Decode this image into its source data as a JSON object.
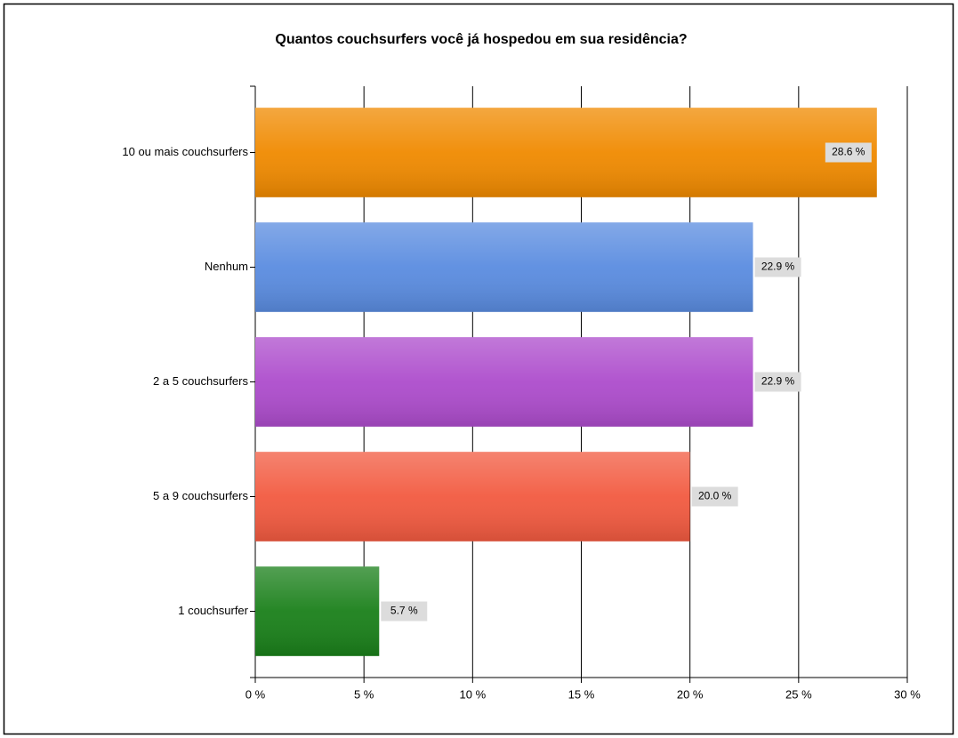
{
  "chart_data": {
    "type": "bar",
    "orientation": "horizontal",
    "title": "Quantos couchsurfers você já hospedou em sua residência?",
    "categories": [
      "10 ou mais couchsurfers",
      "Nenhum",
      "2 a 5 couchsurfers",
      "5 a 9 couchsurfers",
      "1 couchsurfer"
    ],
    "values": [
      28.6,
      22.9,
      22.9,
      20.0,
      5.7
    ],
    "value_labels": [
      "28.6 %",
      "22.9 %",
      "22.9 %",
      "20.0 %",
      "5.7 %"
    ],
    "colors": [
      "#f08a00",
      "#5a8ce0",
      "#ad4ccc",
      "#f25a40",
      "#1a801a"
    ],
    "xlim": [
      0,
      30
    ],
    "xticks": [
      {
        "value": 0,
        "label": "0 %"
      },
      {
        "value": 5,
        "label": "5 %"
      },
      {
        "value": 10,
        "label": "10 %"
      },
      {
        "value": 15,
        "label": "15 %"
      },
      {
        "value": 20,
        "label": "20 %"
      },
      {
        "value": 25,
        "label": "25 %"
      },
      {
        "value": 30,
        "label": "30 %"
      }
    ],
    "grid": true
  }
}
